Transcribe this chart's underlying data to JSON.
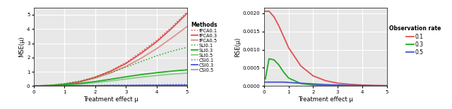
{
  "xlabel": "Treatment effect μ",
  "left_ylabel": "MSE(μ)",
  "right_ylabel": "RSE(μ)",
  "x": [
    0.05,
    0.5,
    1.0,
    1.5,
    2.0,
    2.5,
    3.0,
    3.5,
    4.0,
    4.5,
    5.0
  ],
  "ipca_01": [
    0.02,
    0.04,
    0.14,
    0.32,
    0.65,
    1.08,
    1.65,
    2.4,
    3.2,
    4.15,
    5.2
  ],
  "ipca_03": [
    0.02,
    0.04,
    0.14,
    0.31,
    0.62,
    1.04,
    1.58,
    2.3,
    3.1,
    4.05,
    5.1
  ],
  "ipca_05": [
    0.02,
    0.04,
    0.14,
    0.29,
    0.56,
    0.92,
    1.38,
    1.95,
    2.62,
    3.38,
    4.18
  ],
  "sli_01": [
    0.02,
    0.06,
    0.18,
    0.36,
    0.62,
    0.95,
    1.32,
    1.72,
    2.12,
    2.45,
    2.72
  ],
  "sli_03": [
    0.02,
    0.04,
    0.1,
    0.19,
    0.32,
    0.48,
    0.65,
    0.81,
    0.94,
    1.05,
    1.14
  ],
  "sli_05": [
    0.02,
    0.04,
    0.08,
    0.14,
    0.24,
    0.36,
    0.5,
    0.63,
    0.74,
    0.84,
    0.92
  ],
  "csi_01": [
    0.02,
    0.02,
    0.03,
    0.04,
    0.05,
    0.06,
    0.07,
    0.08,
    0.09,
    0.1,
    0.11
  ],
  "csi_03": [
    0.02,
    0.02,
    0.02,
    0.03,
    0.03,
    0.04,
    0.04,
    0.05,
    0.05,
    0.06,
    0.06
  ],
  "csi_05": [
    0.01,
    0.01,
    0.02,
    0.02,
    0.02,
    0.03,
    0.03,
    0.03,
    0.04,
    0.04,
    0.04
  ],
  "rse_x": [
    0.05,
    0.2,
    0.4,
    0.6,
    0.8,
    1.0,
    1.5,
    2.0,
    2.5,
    3.0,
    3.5,
    4.0,
    4.5,
    5.0
  ],
  "rse_01": [
    0.00205,
    0.00205,
    0.0019,
    0.00165,
    0.00135,
    0.00105,
    0.00055,
    0.00028,
    0.00015,
    8e-05,
    5e-05,
    3e-05,
    2e-05,
    1.5e-05
  ],
  "rse_03": [
    0.0002,
    0.00075,
    0.00072,
    0.00058,
    0.00038,
    0.00022,
    7e-05,
    3e-05,
    1.8e-05,
    1.2e-05,
    8e-06,
    6e-06,
    5e-06,
    4e-06
  ],
  "rse_05": [
    0.00011,
    0.00011,
    0.00011,
    0.00011,
    0.00011,
    0.0001,
    8e-05,
    6e-05,
    4e-05,
    3e-05,
    2.2e-05,
    1.6e-05,
    1.2e-05,
    1e-05
  ],
  "color_red": "#e05050",
  "color_red_dot": "#e05050",
  "color_red_light": "#e09090",
  "color_green": "#22aa22",
  "color_green_dot": "#22aa22",
  "color_green_light": "#88cc88",
  "color_blue": "#4455cc",
  "color_blue_dot": "#4455cc",
  "color_blue_light": "#9999dd",
  "bg_color": "#e8e8e8",
  "grid_color": "#ffffff",
  "legend1_title": "Methods",
  "legend2_title": "Observation rate",
  "leg1_labels": [
    "fPCA0.1",
    "fPCA0.3",
    "fPCA0.5",
    "SLI0.1",
    "SLI0.3",
    "SLI0.5",
    "CSI0.1",
    "CSI0.3",
    "CSI0.5"
  ],
  "leg2_labels": [
    "0.1",
    "0.3",
    "0.5"
  ]
}
